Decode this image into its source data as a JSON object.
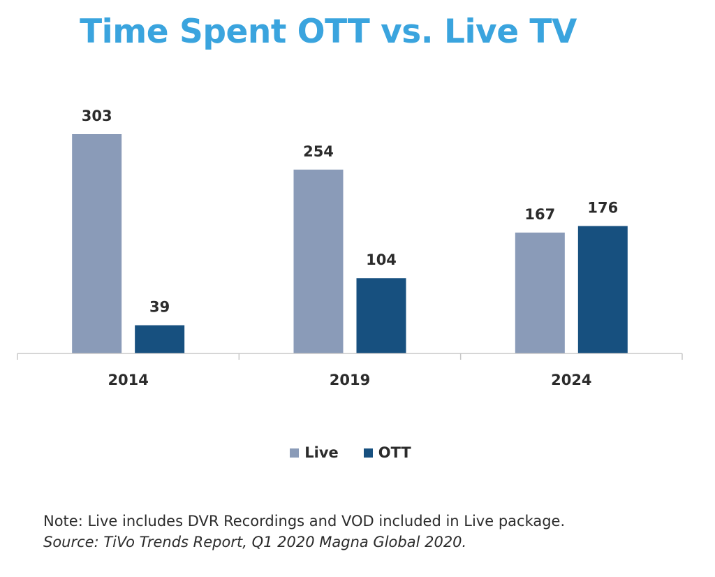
{
  "title": "Time Spent OTT vs. Live TV",
  "colors": {
    "title": "#3aa4de",
    "live": "#8a9bb8",
    "ott": "#17507f",
    "text": "#2b2b2b",
    "axis": "#c8c8c8"
  },
  "chart_data": {
    "type": "bar",
    "title": "Time Spent OTT vs. Live TV",
    "categories": [
      "2014",
      "2019",
      "2024"
    ],
    "series": [
      {
        "name": "Live",
        "values": [
          303,
          254,
          167
        ]
      },
      {
        "name": "OTT",
        "values": [
          39,
          104,
          176
        ]
      }
    ],
    "xlabel": "",
    "ylabel": "",
    "ylim": [
      0,
      303
    ],
    "grid": false,
    "legend": "bottom",
    "data_labels": true
  },
  "legend": {
    "live_label": "Live",
    "ott_label": "OTT"
  },
  "footer": {
    "note": "Note: Live includes DVR Recordings and VOD included in Live package.",
    "source": "Source: TiVo Trends Report, Q1 2020 Magna Global 2020."
  }
}
